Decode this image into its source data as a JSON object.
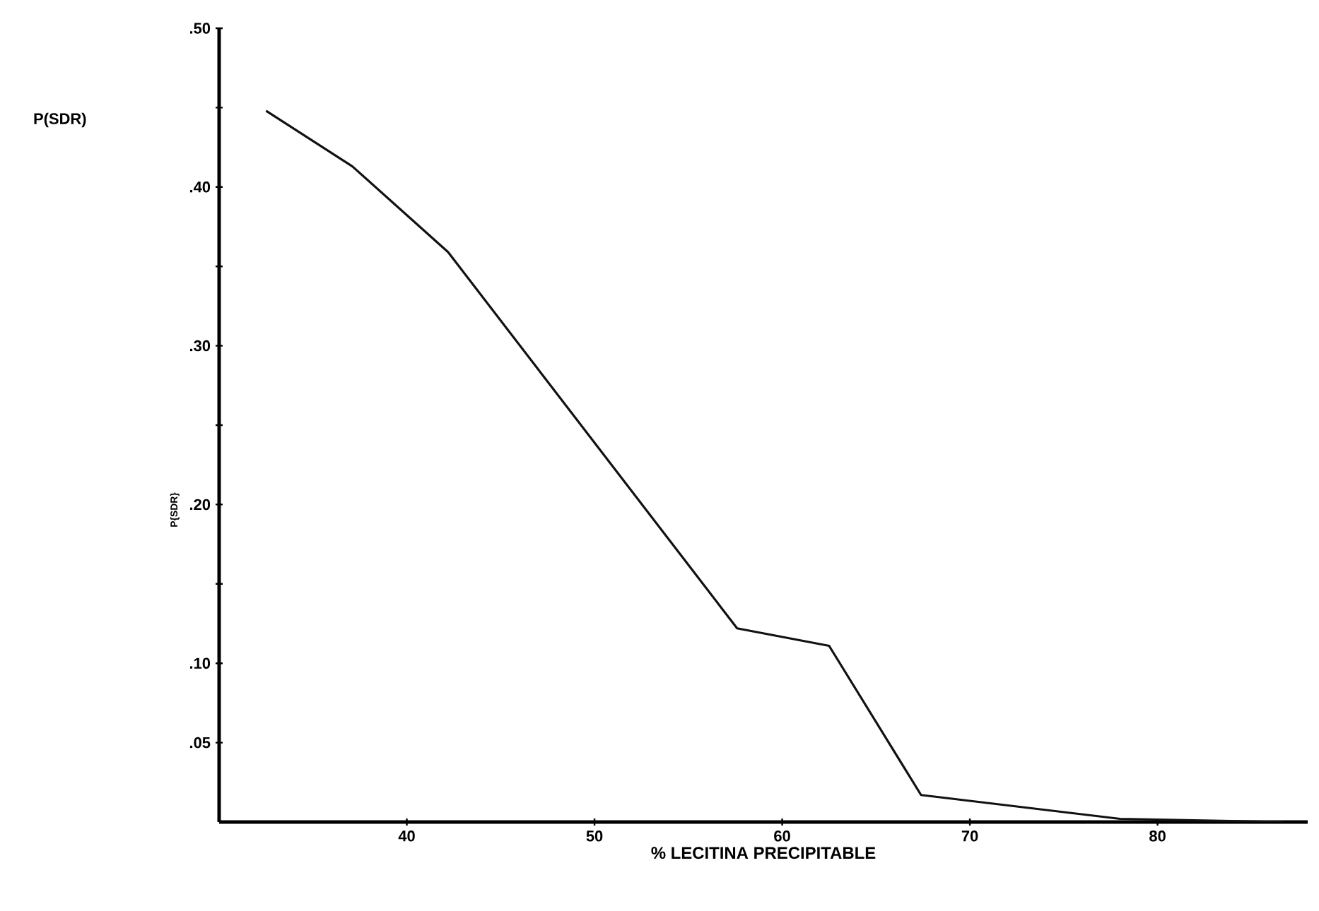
{
  "chart_data": {
    "type": "line",
    "ylabel": "P{SDR}",
    "xlabel": "% LECITINA PRECIPITABLE",
    "annotations": [
      "P(SDR)"
    ],
    "x": [
      32.5,
      37.1,
      42.2,
      57.6,
      62.5,
      67.4,
      78,
      86.7
    ],
    "values": [
      0.448,
      0.413,
      0.359,
      0.122,
      0.111,
      0.017,
      0.002,
      0
    ],
    "color": "#111111",
    "xlim": [
      30,
      88
    ],
    "ylim": [
      0,
      0.5
    ],
    "xticks": [
      40,
      50,
      60,
      70,
      80
    ],
    "yticks": [
      {
        "value": 0.05,
        "label": ".05"
      },
      {
        "value": 0.1,
        "label": ".10"
      },
      {
        "value": 0.15,
        "label": null
      },
      {
        "value": 0.2,
        "label": ".20"
      },
      {
        "value": 0.25,
        "label": null
      },
      {
        "value": 0.3,
        "label": ".30"
      },
      {
        "value": 0.35,
        "label": null
      },
      {
        "value": 0.4,
        "label": ".40"
      },
      {
        "value": 0.45,
        "label": null
      },
      {
        "value": 0.5,
        "label": ".50"
      }
    ],
    "grid": false,
    "marker": "none",
    "line_style": "solid"
  }
}
